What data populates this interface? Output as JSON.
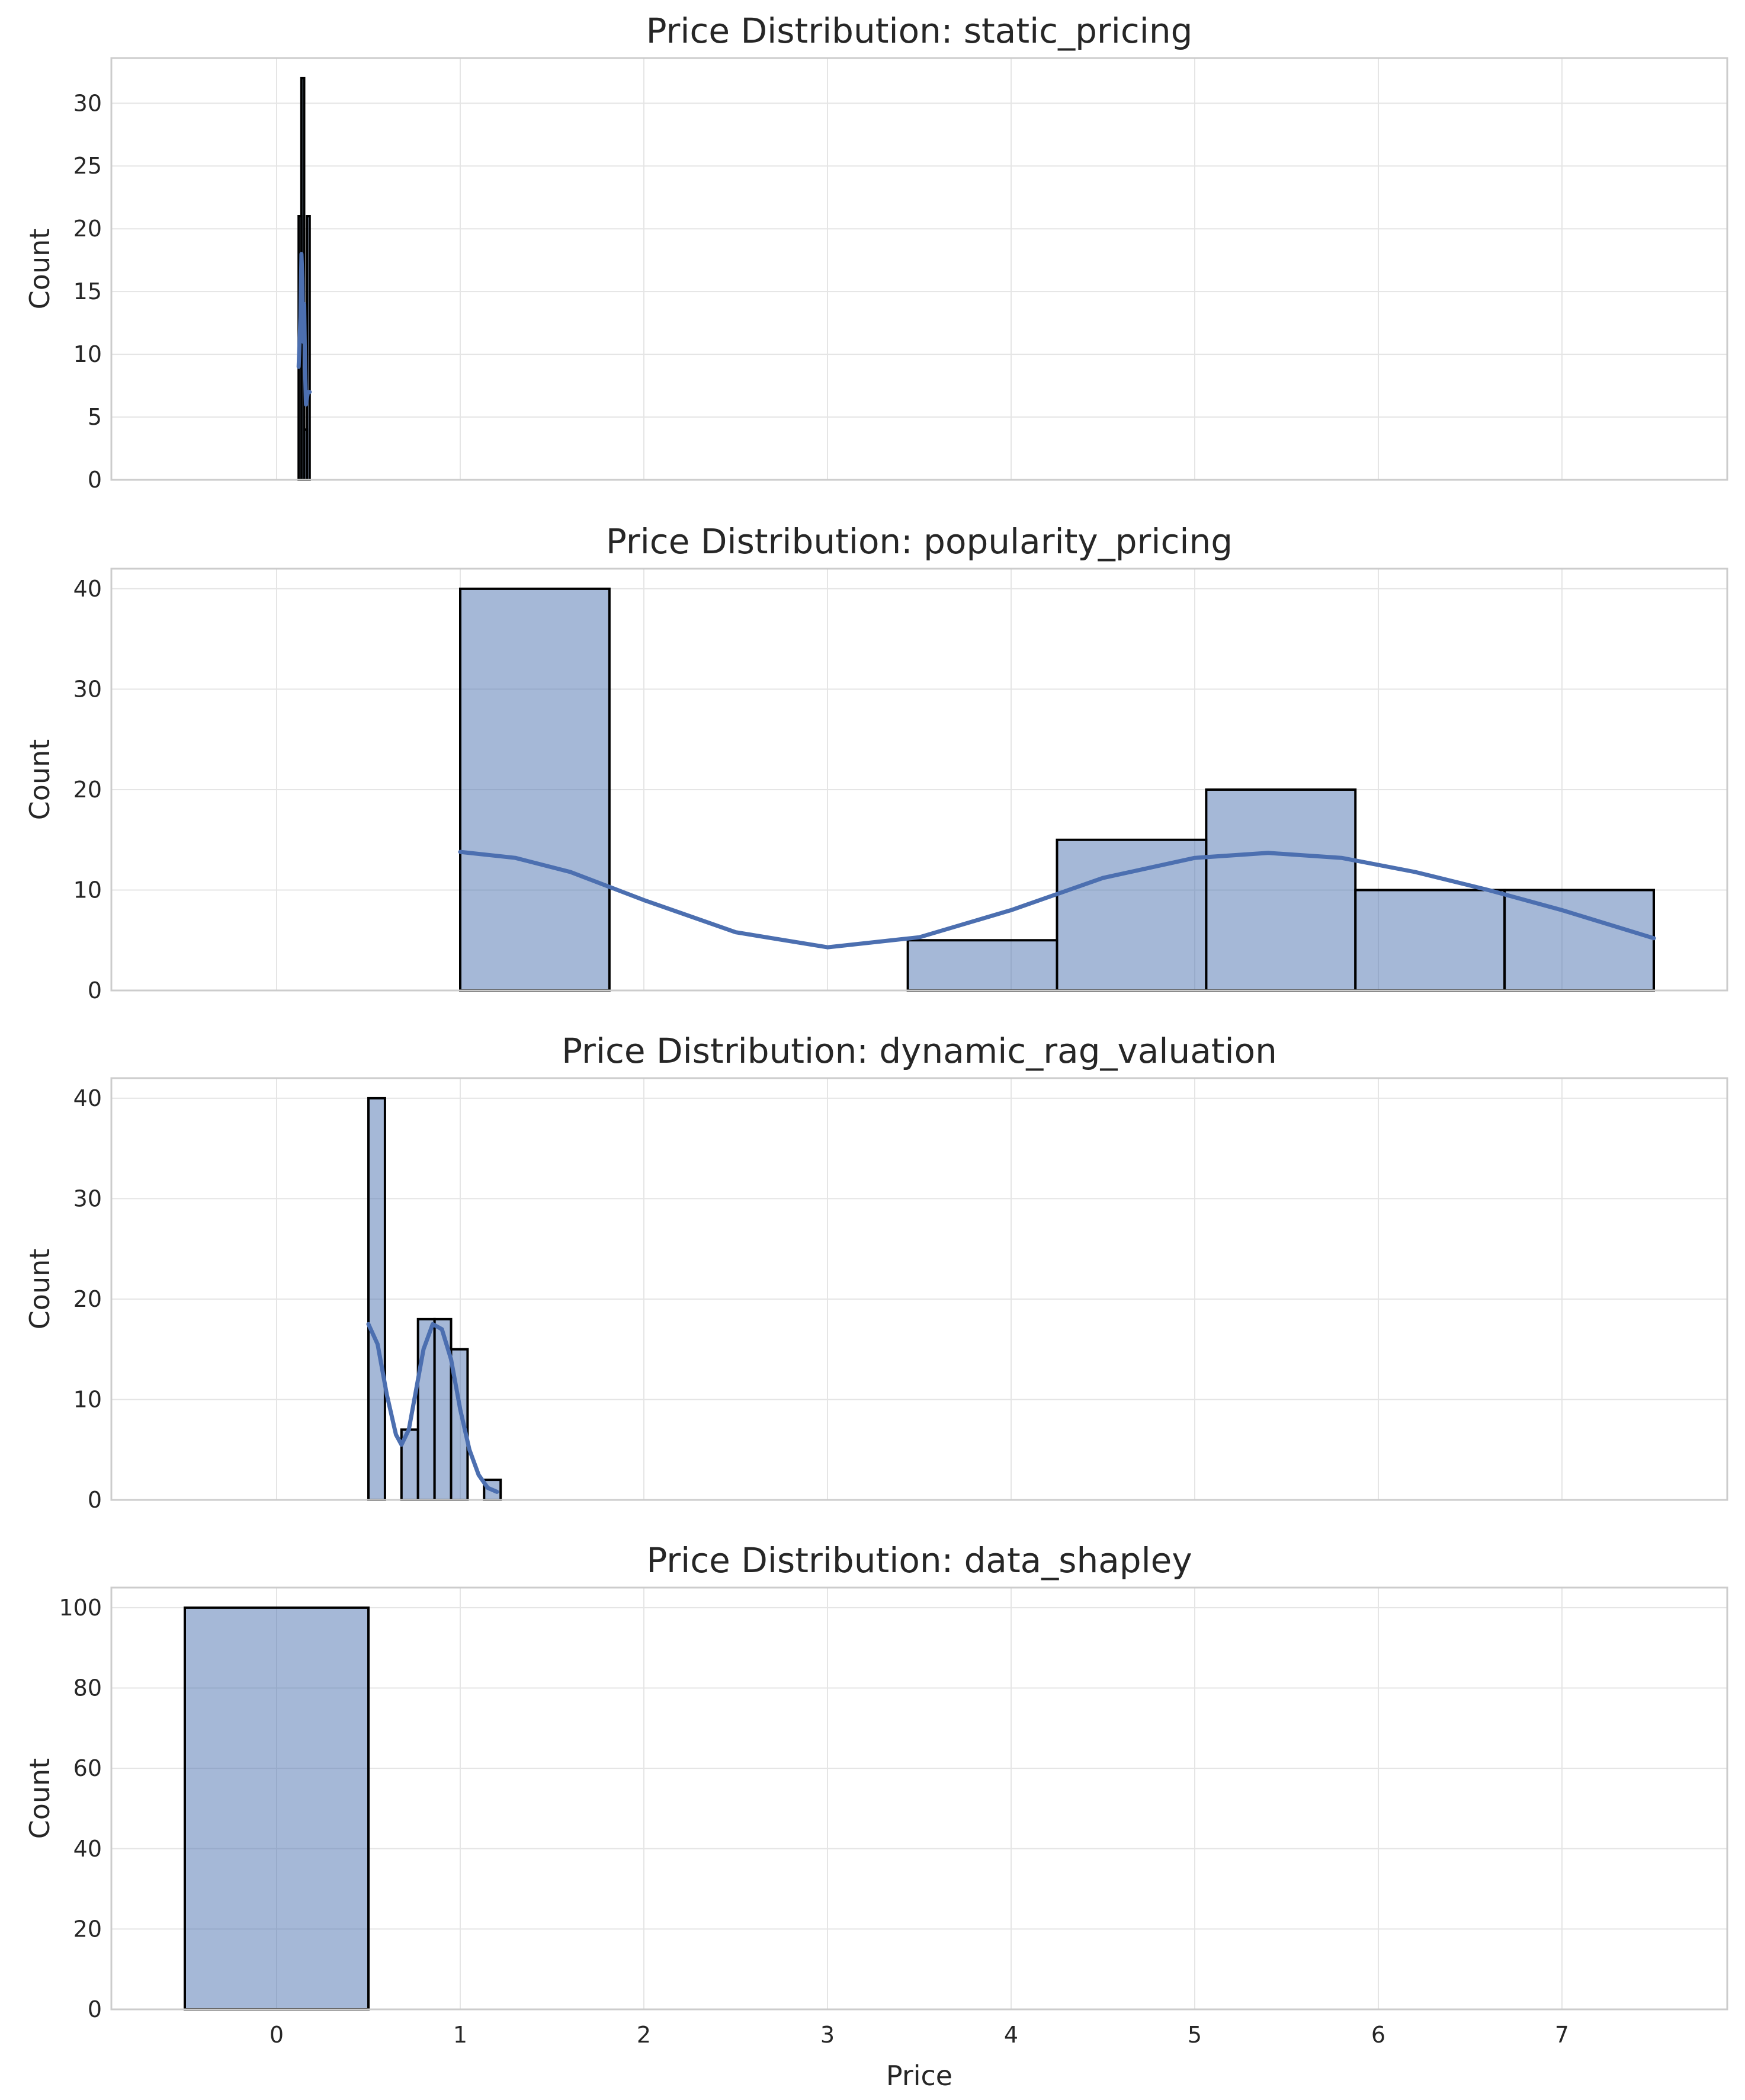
{
  "colors": {
    "bar_fill": "#4c72b0",
    "bar_fill_opacity": 0.5,
    "bar_edge": "#000000",
    "kde_line": "#4c6fb0",
    "grid": "#e5e5e5",
    "frame": "#cccccc",
    "text": "#262626"
  },
  "chart_data": [
    {
      "type": "bar",
      "title": "Price Distribution: static_pricing",
      "xlabel": "",
      "ylabel": "Count",
      "xlim": [
        -0.9,
        7.9
      ],
      "ylim": [
        0,
        33.6
      ],
      "yticks": [
        0,
        5,
        10,
        15,
        20,
        25,
        30
      ],
      "xticks": [
        0,
        1,
        2,
        3,
        4,
        5,
        6,
        7
      ],
      "show_xtick_labels": false,
      "grid": true,
      "bins": [
        {
          "x0": 0.12,
          "x1": 0.135,
          "count": 21
        },
        {
          "x0": 0.135,
          "x1": 0.15,
          "count": 32
        },
        {
          "x0": 0.15,
          "x1": 0.165,
          "count": 4
        },
        {
          "x0": 0.165,
          "x1": 0.18,
          "count": 21
        }
      ],
      "kde": {
        "x": [
          0.12,
          0.13,
          0.135,
          0.14,
          0.145,
          0.15,
          0.155,
          0.16,
          0.17,
          0.18
        ],
        "y": [
          9,
          13,
          18,
          16,
          11,
          14,
          9,
          6,
          7,
          7
        ]
      }
    },
    {
      "type": "bar",
      "title": "Price Distribution: popularity_pricing",
      "xlabel": "",
      "ylabel": "Count",
      "xlim": [
        -0.9,
        7.9
      ],
      "ylim": [
        0,
        42
      ],
      "yticks": [
        0,
        10,
        20,
        30,
        40
      ],
      "xticks": [
        0,
        1,
        2,
        3,
        4,
        5,
        6,
        7
      ],
      "show_xtick_labels": false,
      "grid": true,
      "bins": [
        {
          "x0": 1.0,
          "x1": 1.8125,
          "count": 40
        },
        {
          "x0": 1.8125,
          "x1": 2.625,
          "count": 0
        },
        {
          "x0": 2.625,
          "x1": 3.4375,
          "count": 0
        },
        {
          "x0": 3.4375,
          "x1": 4.25,
          "count": 5
        },
        {
          "x0": 4.25,
          "x1": 5.0625,
          "count": 15
        },
        {
          "x0": 5.0625,
          "x1": 5.875,
          "count": 20
        },
        {
          "x0": 5.875,
          "x1": 6.6875,
          "count": 10
        },
        {
          "x0": 6.6875,
          "x1": 7.5,
          "count": 10
        }
      ],
      "kde": {
        "x": [
          1.0,
          1.3,
          1.6,
          2.0,
          2.5,
          3.0,
          3.5,
          4.0,
          4.5,
          5.0,
          5.4,
          5.8,
          6.2,
          6.6,
          7.0,
          7.5
        ],
        "y": [
          13.8,
          13.2,
          11.8,
          9.0,
          5.8,
          4.3,
          5.3,
          8.0,
          11.2,
          13.2,
          13.7,
          13.2,
          11.8,
          10.0,
          8.0,
          5.2
        ]
      }
    },
    {
      "type": "bar",
      "title": "Price Distribution: dynamic_rag_valuation",
      "xlabel": "",
      "ylabel": "Count",
      "xlim": [
        -0.9,
        7.9
      ],
      "ylim": [
        0,
        42
      ],
      "yticks": [
        0,
        10,
        20,
        30,
        40
      ],
      "xticks": [
        0,
        1,
        2,
        3,
        4,
        5,
        6,
        7
      ],
      "show_xtick_labels": false,
      "grid": true,
      "bins": [
        {
          "x0": 0.5,
          "x1": 0.59,
          "count": 40
        },
        {
          "x0": 0.59,
          "x1": 0.68,
          "count": 0
        },
        {
          "x0": 0.68,
          "x1": 0.77,
          "count": 7
        },
        {
          "x0": 0.77,
          "x1": 0.86,
          "count": 18
        },
        {
          "x0": 0.86,
          "x1": 0.95,
          "count": 18
        },
        {
          "x0": 0.95,
          "x1": 1.04,
          "count": 15
        },
        {
          "x0": 1.04,
          "x1": 1.13,
          "count": 0
        },
        {
          "x0": 1.13,
          "x1": 1.22,
          "count": 2
        }
      ],
      "kde": {
        "x": [
          0.5,
          0.55,
          0.6,
          0.65,
          0.68,
          0.72,
          0.76,
          0.8,
          0.85,
          0.9,
          0.95,
          1.0,
          1.05,
          1.1,
          1.15,
          1.2
        ],
        "y": [
          17.5,
          15.5,
          10.5,
          6.5,
          5.5,
          7.0,
          11.0,
          15.0,
          17.5,
          17.0,
          14.0,
          9.0,
          5.0,
          2.5,
          1.2,
          0.8
        ]
      }
    },
    {
      "type": "bar",
      "title": "Price Distribution: data_shapley",
      "xlabel": "Price",
      "ylabel": "Count",
      "xlim": [
        -0.9,
        7.9
      ],
      "ylim": [
        0,
        105
      ],
      "yticks": [
        0,
        20,
        40,
        60,
        80,
        100
      ],
      "xticks": [
        0,
        1,
        2,
        3,
        4,
        5,
        6,
        7
      ],
      "show_xtick_labels": true,
      "grid": true,
      "bins": [
        {
          "x0": -0.5,
          "x1": 0.5,
          "count": 100
        }
      ]
    }
  ]
}
